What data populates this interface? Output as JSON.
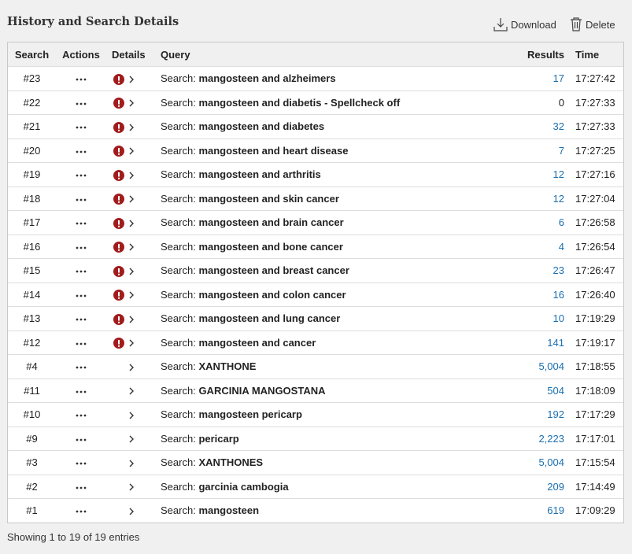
{
  "header": {
    "title": "History and Search Details",
    "download": "Download",
    "delete": "Delete"
  },
  "table": {
    "columns": [
      "Search",
      "Actions",
      "Details",
      "Query",
      "Results",
      "Time"
    ],
    "query_prefix": "Search:",
    "rows": [
      {
        "search": "#23",
        "query": "mangosteen and alzheimers",
        "results": "17",
        "time": "17:27:42",
        "warning": true
      },
      {
        "search": "#22",
        "query": "mangosteen and diabetis - Spellcheck off",
        "results": "0",
        "time": "17:27:33",
        "warning": true
      },
      {
        "search": "#21",
        "query": "mangosteen and diabetes",
        "results": "32",
        "time": "17:27:33",
        "warning": true
      },
      {
        "search": "#20",
        "query": "mangosteen and heart disease",
        "results": "7",
        "time": "17:27:25",
        "warning": true
      },
      {
        "search": "#19",
        "query": "mangosteen and arthritis",
        "results": "12",
        "time": "17:27:16",
        "warning": true
      },
      {
        "search": "#18",
        "query": "mangosteen and skin cancer",
        "results": "12",
        "time": "17:27:04",
        "warning": true
      },
      {
        "search": "#17",
        "query": "mangosteen and brain cancer",
        "results": "6",
        "time": "17:26:58",
        "warning": true
      },
      {
        "search": "#16",
        "query": "mangosteen and bone cancer",
        "results": "4",
        "time": "17:26:54",
        "warning": true
      },
      {
        "search": "#15",
        "query": "mangosteen and breast cancer",
        "results": "23",
        "time": "17:26:47",
        "warning": true
      },
      {
        "search": "#14",
        "query": "mangosteen and colon cancer",
        "results": "16",
        "time": "17:26:40",
        "warning": true
      },
      {
        "search": "#13",
        "query": "mangosteen and lung cancer",
        "results": "10",
        "time": "17:19:29",
        "warning": true
      },
      {
        "search": "#12",
        "query": "mangosteen and cancer",
        "results": "141",
        "time": "17:19:17",
        "warning": true
      },
      {
        "search": "#4",
        "query": "XANTHONE",
        "results": "5,004",
        "time": "17:18:55",
        "warning": false
      },
      {
        "search": "#11",
        "query": "GARCINIA MANGOSTANA",
        "results": "504",
        "time": "17:18:09",
        "warning": false
      },
      {
        "search": "#10",
        "query": "mangosteen pericarp",
        "results": "192",
        "time": "17:17:29",
        "warning": false
      },
      {
        "search": "#9",
        "query": "pericarp",
        "results": "2,223",
        "time": "17:17:01",
        "warning": false
      },
      {
        "search": "#3",
        "query": "XANTHONES",
        "results": "5,004",
        "time": "17:15:54",
        "warning": false
      },
      {
        "search": "#2",
        "query": "garcinia cambogia",
        "results": "209",
        "time": "17:14:49",
        "warning": false
      },
      {
        "search": "#1",
        "query": "mangosteen",
        "results": "619",
        "time": "17:09:29",
        "warning": false
      }
    ]
  },
  "footer": "Showing 1 to 19 of 19 entries"
}
